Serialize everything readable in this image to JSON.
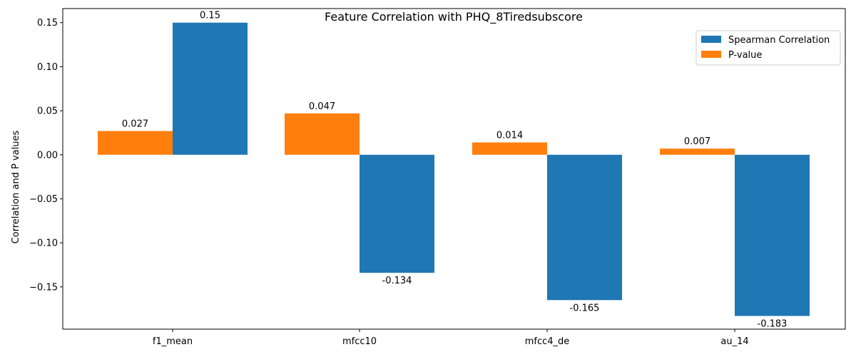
{
  "chart_data": {
    "type": "bar",
    "title": "Feature Correlation with PHQ_8Tiredsubscore",
    "xlabel": "",
    "ylabel": "Correlation and P values",
    "categories": [
      "f1_mean",
      "mfcc10",
      "mfcc4_de",
      "au_14"
    ],
    "ylim": [
      -0.198,
      0.166
    ],
    "yticks": [
      -0.15,
      -0.1,
      -0.05,
      0.0,
      0.05,
      0.1,
      0.15
    ],
    "ytick_labels": [
      "−0.15",
      "−0.10",
      "−0.05",
      "0.00",
      "0.05",
      "0.10",
      "0.15"
    ],
    "grid": false,
    "legend_position": "top-right",
    "series": [
      {
        "name": "Spearman Correlation",
        "color": "#1f77b4",
        "values": [
          0.15,
          -0.134,
          -0.165,
          -0.183
        ],
        "labels": [
          "0.15",
          "-0.134",
          "-0.165",
          "-0.183"
        ]
      },
      {
        "name": "P-value",
        "color": "#ff7f0e",
        "values": [
          0.027,
          0.047,
          0.014,
          0.007
        ],
        "labels": [
          "0.027",
          "0.047",
          "0.014",
          "0.007"
        ]
      }
    ]
  }
}
